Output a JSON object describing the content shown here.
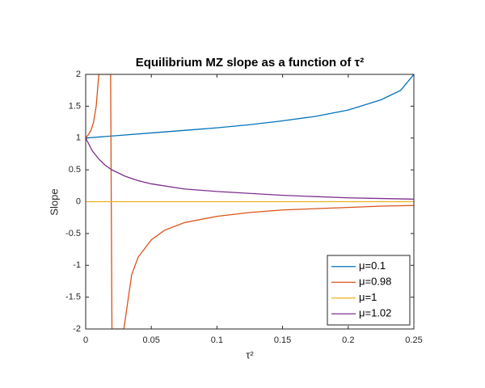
{
  "chart_data": {
    "type": "line",
    "title": "Equilibrium MZ slope as a function of τ²",
    "x_label": "τ²",
    "y_label": "Slope",
    "xlim": [
      0,
      0.25
    ],
    "ylim": [
      -2,
      2
    ],
    "xticks": [
      0,
      0.05,
      0.1,
      0.15,
      0.2,
      0.25
    ],
    "yticks": [
      -2,
      -1.5,
      -1,
      -0.5,
      0,
      0.5,
      1,
      1.5,
      2
    ],
    "legend": "southeast",
    "series": [
      {
        "name": "μ=0.1",
        "color": "#0072BD",
        "x": [
          0,
          0.025,
          0.05,
          0.075,
          0.1,
          0.125,
          0.15,
          0.175,
          0.2,
          0.225,
          0.24,
          0.25
        ],
        "values": [
          1,
          1.04,
          1.08,
          1.12,
          1.16,
          1.21,
          1.27,
          1.34,
          1.44,
          1.6,
          1.75,
          2
        ]
      },
      {
        "name": "μ=0.98",
        "color": "#D95319",
        "x": [
          0,
          0.002,
          0.004,
          0.006,
          0.008,
          0.009,
          0.01,
          0.019,
          0.02,
          0.029,
          0.03,
          0.035,
          0.04,
          0.05,
          0.06,
          0.075,
          0.1,
          0.125,
          0.15,
          0.175,
          0.2,
          0.225,
          0.25
        ],
        "values": [
          1,
          1.05,
          1.12,
          1.25,
          1.5,
          1.75,
          2,
          2,
          -2,
          -2,
          -1.87,
          -1.15,
          -0.87,
          -0.6,
          -0.45,
          -0.33,
          -0.23,
          -0.17,
          -0.13,
          -0.11,
          -0.09,
          -0.07,
          -0.06
        ]
      },
      {
        "name": "μ=1",
        "color": "#EDB120",
        "x": [
          0,
          0.25
        ],
        "values": [
          0,
          0
        ]
      },
      {
        "name": "μ=1.02",
        "color": "#7E2F8E",
        "x": [
          0,
          0.005,
          0.01,
          0.015,
          0.02,
          0.03,
          0.04,
          0.05,
          0.075,
          0.1,
          0.125,
          0.15,
          0.175,
          0.2,
          0.225,
          0.25
        ],
        "values": [
          1,
          0.8,
          0.67,
          0.57,
          0.5,
          0.4,
          0.33,
          0.28,
          0.2,
          0.16,
          0.13,
          0.1,
          0.08,
          0.06,
          0.05,
          0.04
        ]
      }
    ]
  }
}
